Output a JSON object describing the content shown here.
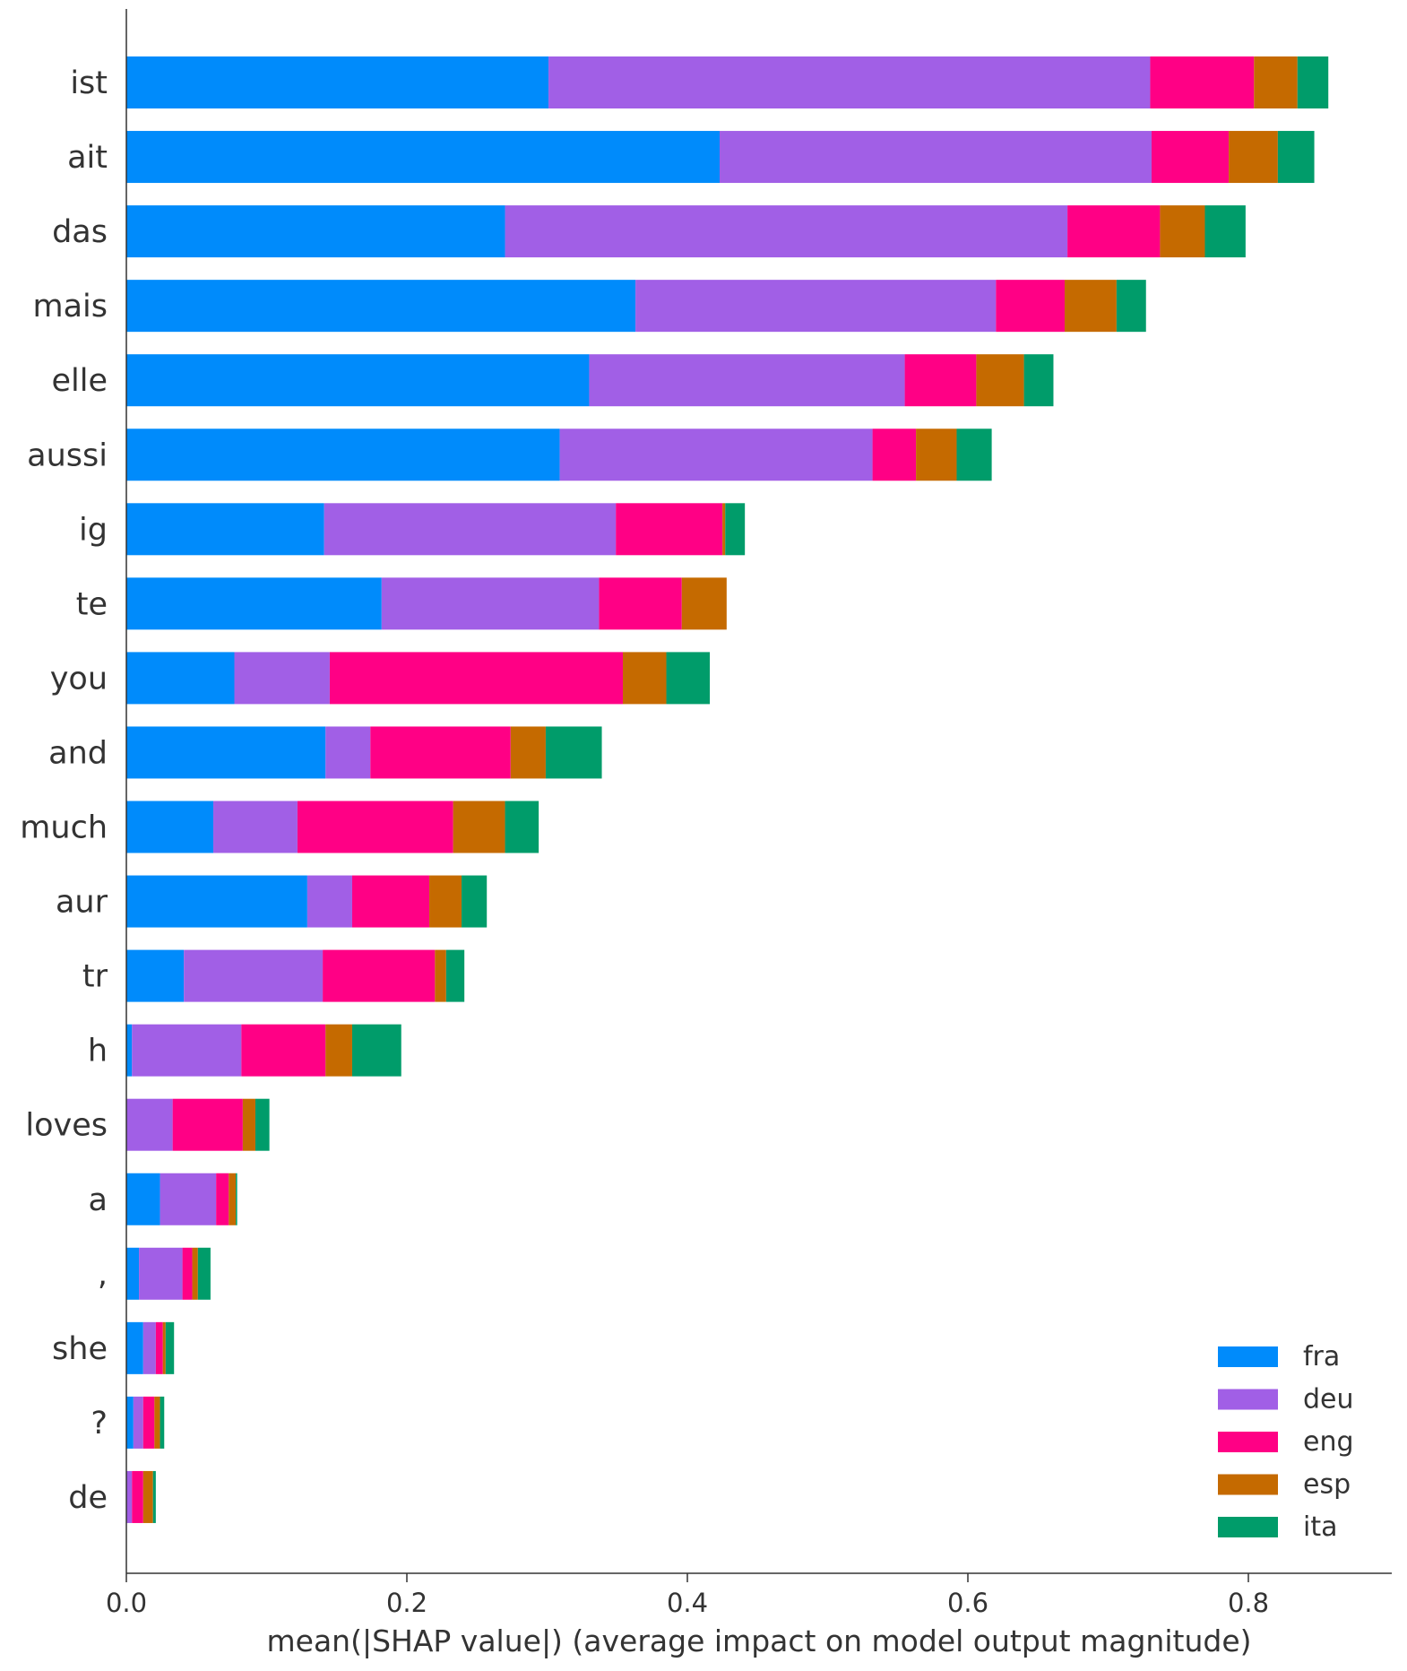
{
  "chart_data": {
    "type": "bar",
    "orientation": "horizontal",
    "stacked": true,
    "title": "",
    "xlabel": "mean(|SHAP value|) (average impact on model output magnitude)",
    "ylabel": "",
    "xlim": [
      0,
      0.9
    ],
    "xticks": [
      0.0,
      0.2,
      0.4,
      0.6,
      0.8
    ],
    "xtick_labels": [
      "0.0",
      "0.2",
      "0.4",
      "0.6",
      "0.8"
    ],
    "grid": false,
    "legend_position": "bottom-right",
    "categories": [
      "ist",
      "ait",
      "das",
      "mais",
      "elle",
      "aussi",
      "ig",
      "te",
      "you",
      "and",
      "much",
      "aur",
      "tr",
      "h",
      "loves",
      "a",
      ",",
      "she",
      "?",
      "de"
    ],
    "series": [
      {
        "name": "fra",
        "color": "#008bfb",
        "values": [
          0.301,
          0.423,
          0.27,
          0.363,
          0.33,
          0.309,
          0.141,
          0.182,
          0.077,
          0.142,
          0.062,
          0.129,
          0.041,
          0.004,
          0.0,
          0.024,
          0.009,
          0.012,
          0.005,
          0.0
        ]
      },
      {
        "name": "deu",
        "color": "#a15fe6",
        "values": [
          0.429,
          0.308,
          0.401,
          0.257,
          0.225,
          0.223,
          0.208,
          0.155,
          0.068,
          0.032,
          0.06,
          0.032,
          0.099,
          0.078,
          0.033,
          0.04,
          0.031,
          0.009,
          0.007,
          0.004
        ]
      },
      {
        "name": "eng",
        "color": "#ff0085",
        "values": [
          0.074,
          0.055,
          0.066,
          0.049,
          0.051,
          0.031,
          0.076,
          0.059,
          0.209,
          0.1,
          0.111,
          0.055,
          0.08,
          0.06,
          0.05,
          0.009,
          0.007,
          0.005,
          0.008,
          0.008
        ]
      },
      {
        "name": "esp",
        "color": "#c56a00",
        "values": [
          0.031,
          0.035,
          0.032,
          0.037,
          0.034,
          0.029,
          0.002,
          0.032,
          0.031,
          0.025,
          0.037,
          0.023,
          0.008,
          0.019,
          0.009,
          0.005,
          0.004,
          0.002,
          0.004,
          0.007
        ]
      },
      {
        "name": "ita",
        "color": "#009c6a",
        "values": [
          0.022,
          0.026,
          0.029,
          0.021,
          0.021,
          0.025,
          0.014,
          0.0,
          0.031,
          0.04,
          0.024,
          0.018,
          0.013,
          0.035,
          0.01,
          0.001,
          0.009,
          0.006,
          0.003,
          0.002
        ]
      }
    ]
  }
}
